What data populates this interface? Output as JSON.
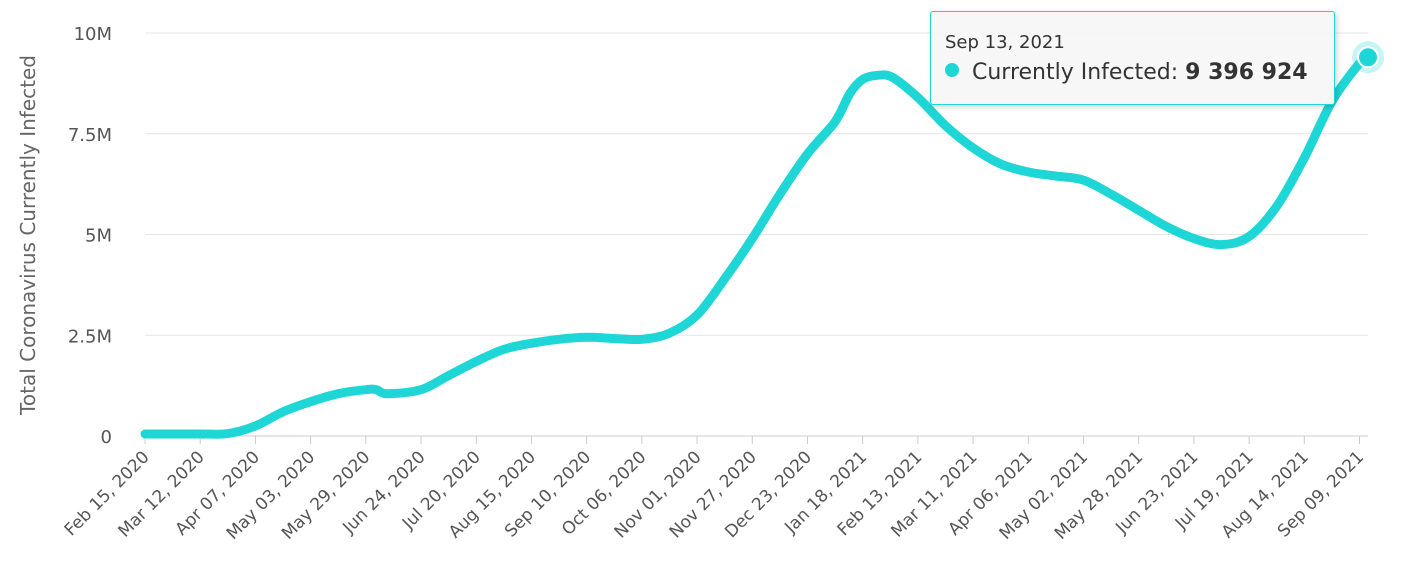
{
  "colors": {
    "series": "#1fd6d6",
    "grid": "#e6e6e6",
    "axis": "#cccccc"
  },
  "tooltip": {
    "date": "Sep 13, 2021",
    "series_label": "Currently Infected:",
    "value": "9 396 924"
  },
  "chart_data": {
    "type": "line",
    "ylabel": "Total Coronavirus Currently Infected",
    "xlabel": "",
    "x_start": "2020-02-15",
    "x_end": "2021-09-13",
    "ylim": [
      0,
      10000000
    ],
    "y_ticks": [
      0,
      2500000,
      5000000,
      7500000,
      10000000
    ],
    "y_tick_labels": [
      "0",
      "2.5M",
      "5M",
      "7.5M",
      "10M"
    ],
    "x_tick_labels": [
      "Feb 15, 2020",
      "Mar 12, 2020",
      "Apr 07, 2020",
      "May 03, 2020",
      "May 29, 2020",
      "Jun 24, 2020",
      "Jul 20, 2020",
      "Aug 15, 2020",
      "Sep 10, 2020",
      "Oct 06, 2020",
      "Nov 01, 2020",
      "Nov 27, 2020",
      "Dec 23, 2020",
      "Jan 18, 2021",
      "Feb 13, 2021",
      "Mar 11, 2021",
      "Apr 06, 2021",
      "May 02, 2021",
      "May 28, 2021",
      "Jun 23, 2021",
      "Jul 19, 2021",
      "Aug 14, 2021",
      "Sep 09, 2021"
    ],
    "grid": true,
    "legend": "none",
    "series": [
      {
        "name": "Currently Infected",
        "points": [
          [
            "2020-02-15",
            50000
          ],
          [
            "2020-03-12",
            50000
          ],
          [
            "2020-03-25",
            60000
          ],
          [
            "2020-04-07",
            250000
          ],
          [
            "2020-04-20",
            600000
          ],
          [
            "2020-05-03",
            850000
          ],
          [
            "2020-05-16",
            1050000
          ],
          [
            "2020-05-29",
            1150000
          ],
          [
            "2020-06-03",
            1150000
          ],
          [
            "2020-06-08",
            1050000
          ],
          [
            "2020-06-24",
            1150000
          ],
          [
            "2020-07-07",
            1500000
          ],
          [
            "2020-07-20",
            1850000
          ],
          [
            "2020-08-02",
            2150000
          ],
          [
            "2020-08-15",
            2300000
          ],
          [
            "2020-08-28",
            2400000
          ],
          [
            "2020-09-10",
            2450000
          ],
          [
            "2020-09-23",
            2420000
          ],
          [
            "2020-10-06",
            2400000
          ],
          [
            "2020-10-19",
            2550000
          ],
          [
            "2020-11-01",
            3000000
          ],
          [
            "2020-11-14",
            3900000
          ],
          [
            "2020-11-27",
            4900000
          ],
          [
            "2020-12-10",
            6000000
          ],
          [
            "2020-12-23",
            7000000
          ],
          [
            "2021-01-05",
            7800000
          ],
          [
            "2021-01-12",
            8500000
          ],
          [
            "2021-01-18",
            8850000
          ],
          [
            "2021-01-25",
            8950000
          ],
          [
            "2021-02-01",
            8900000
          ],
          [
            "2021-02-13",
            8400000
          ],
          [
            "2021-02-26",
            7700000
          ],
          [
            "2021-03-11",
            7150000
          ],
          [
            "2021-03-24",
            6750000
          ],
          [
            "2021-04-06",
            6550000
          ],
          [
            "2021-04-19",
            6450000
          ],
          [
            "2021-05-02",
            6350000
          ],
          [
            "2021-05-15",
            6000000
          ],
          [
            "2021-05-28",
            5600000
          ],
          [
            "2021-06-10",
            5200000
          ],
          [
            "2021-06-23",
            4900000
          ],
          [
            "2021-07-06",
            4750000
          ],
          [
            "2021-07-19",
            4950000
          ],
          [
            "2021-08-01",
            5700000
          ],
          [
            "2021-08-14",
            6900000
          ],
          [
            "2021-08-27",
            8300000
          ],
          [
            "2021-09-09",
            9250000
          ],
          [
            "2021-09-13",
            9396924
          ]
        ]
      }
    ]
  }
}
